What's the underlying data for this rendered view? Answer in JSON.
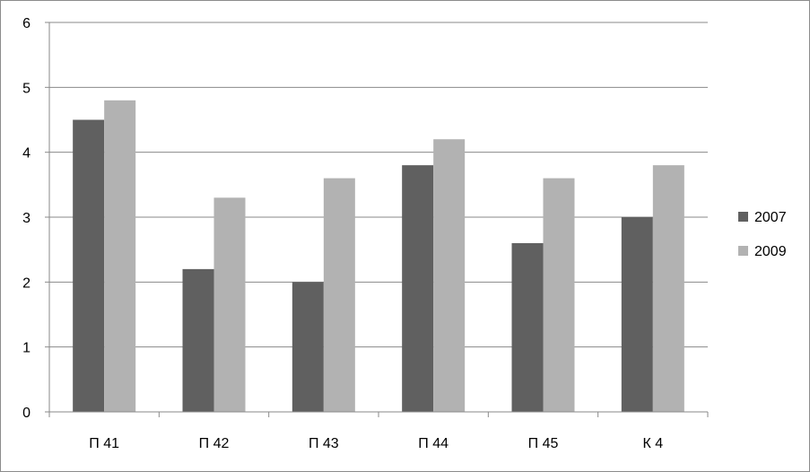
{
  "chart_data": {
    "type": "bar",
    "categories": [
      "П 41",
      "П 42",
      "П 43",
      "П 44",
      "П 45",
      "К 4"
    ],
    "series": [
      {
        "name": "2007",
        "values": [
          4.5,
          2.2,
          2.0,
          3.8,
          2.6,
          3.0
        ],
        "color": "#606060"
      },
      {
        "name": "2009",
        "values": [
          4.8,
          3.3,
          3.6,
          4.2,
          3.6,
          3.8
        ],
        "color": "#b2b2b2"
      }
    ],
    "ylim": [
      0,
      6
    ],
    "yticks": [
      0,
      1,
      2,
      3,
      4,
      5,
      6
    ],
    "grid": true,
    "legend_position": "right"
  }
}
